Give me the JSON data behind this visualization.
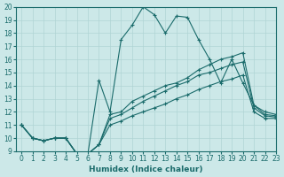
{
  "xlabel": "Humidex (Indice chaleur)",
  "xlim": [
    -0.5,
    23
  ],
  "ylim": [
    9,
    20
  ],
  "yticks": [
    9,
    10,
    11,
    12,
    13,
    14,
    15,
    16,
    17,
    18,
    19,
    20
  ],
  "xticks": [
    0,
    1,
    2,
    3,
    4,
    5,
    6,
    7,
    8,
    9,
    10,
    11,
    12,
    13,
    14,
    15,
    16,
    17,
    18,
    19,
    20,
    21,
    22,
    23
  ],
  "bg_color": "#cce8e8",
  "grid_color": "#b0d4d4",
  "line_color": "#1a6b6b",
  "lines": [
    {
      "x": [
        0,
        1,
        2,
        3,
        4,
        5,
        6,
        7,
        8,
        9,
        10,
        11,
        12,
        13,
        14,
        15,
        16,
        17,
        18,
        19,
        20,
        21,
        22,
        23
      ],
      "y": [
        11,
        10,
        9.8,
        10,
        10,
        8.8,
        8.8,
        14.4,
        12.0,
        17.5,
        18.6,
        20.0,
        19.4,
        18.0,
        19.3,
        19.2,
        17.5,
        16.0,
        14.2,
        16.0,
        14.2,
        12.5,
        11.8,
        11.7
      ]
    },
    {
      "x": [
        0,
        1,
        2,
        3,
        4,
        5,
        6,
        7,
        8,
        9,
        10,
        11,
        12,
        13,
        14,
        15,
        16,
        17,
        18,
        19,
        20,
        21,
        22,
        23
      ],
      "y": [
        11,
        10,
        9.8,
        10,
        10,
        8.8,
        8.8,
        9.5,
        11.8,
        12.0,
        12.8,
        13.2,
        13.6,
        14.0,
        14.2,
        14.6,
        15.2,
        15.6,
        16.0,
        16.2,
        16.5,
        12.5,
        12.0,
        11.8
      ]
    },
    {
      "x": [
        0,
        1,
        2,
        3,
        4,
        5,
        6,
        7,
        8,
        9,
        10,
        11,
        12,
        13,
        14,
        15,
        16,
        17,
        18,
        19,
        20,
        21,
        22,
        23
      ],
      "y": [
        11,
        10,
        9.8,
        10,
        10,
        8.8,
        8.8,
        9.5,
        11.5,
        11.8,
        12.3,
        12.8,
        13.2,
        13.6,
        14.0,
        14.3,
        14.8,
        15.0,
        15.3,
        15.6,
        15.8,
        12.3,
        11.7,
        11.6
      ]
    },
    {
      "x": [
        0,
        1,
        2,
        3,
        4,
        5,
        6,
        7,
        8,
        9,
        10,
        11,
        12,
        13,
        14,
        15,
        16,
        17,
        18,
        19,
        20,
        21,
        22,
        23
      ],
      "y": [
        11,
        10,
        9.8,
        10,
        10,
        8.8,
        8.8,
        9.5,
        11.0,
        11.3,
        11.7,
        12.0,
        12.3,
        12.6,
        13.0,
        13.3,
        13.7,
        14.0,
        14.3,
        14.5,
        14.8,
        12.0,
        11.5,
        11.5
      ]
    }
  ]
}
